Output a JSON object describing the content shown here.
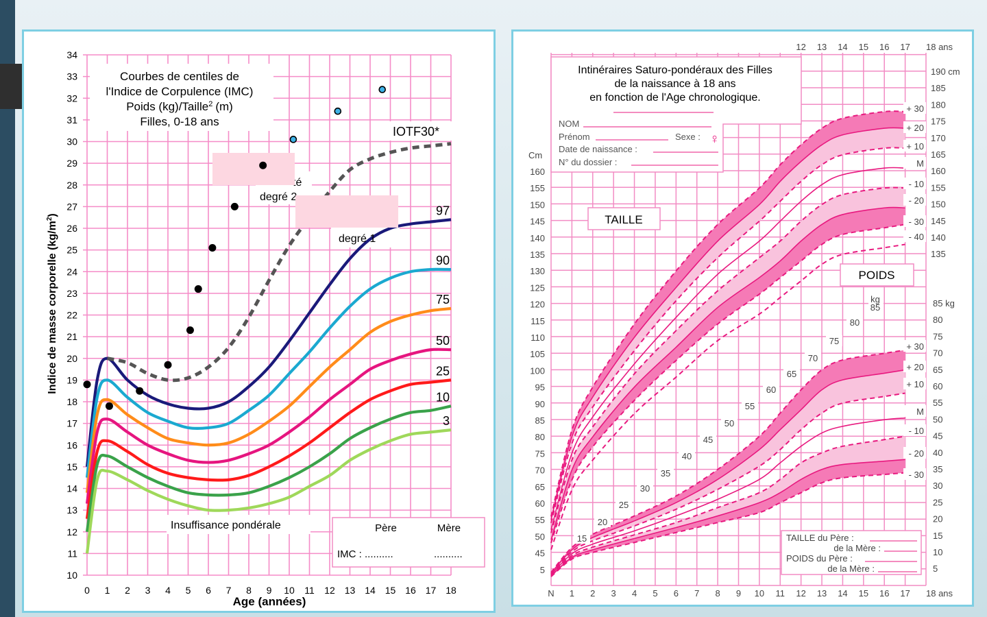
{
  "slide": {
    "background_accent": "#2c4d62",
    "panel_border": "#7ecfe3"
  },
  "chart_data": [
    {
      "type": "line",
      "title": "Courbes de centiles de l'Indice de Corpulence (IMC) Poids (kg)/Taille² (m) Filles, 0-18 ans",
      "title_lines": [
        "Courbes de centiles de",
        "l'Indice de Corpulence (IMC)",
        "Poids (kg)/Taille",
        "(m)",
        "Filles, 0-18 ans"
      ],
      "superscript": "2",
      "xlabel": "Age (années)",
      "ylabel": "Indice de masse corporelle (kg/m",
      "ylabel_sup": "2",
      "ylabel_end": ")",
      "xlim": [
        0,
        18
      ],
      "ylim": [
        10,
        34
      ],
      "xticks": [
        "0",
        "1",
        "2",
        "3",
        "4",
        "5",
        "6",
        "7",
        "8",
        "9",
        "10",
        "11",
        "12",
        "13",
        "14",
        "15",
        "16",
        "17",
        "18"
      ],
      "yticks": [
        "10",
        "11",
        "12",
        "13",
        "14",
        "15",
        "16",
        "17",
        "18",
        "19",
        "20",
        "21",
        "22",
        "23",
        "24",
        "25",
        "26",
        "27",
        "28",
        "29",
        "30",
        "31",
        "32",
        "33",
        "34"
      ],
      "grid": true,
      "x": [
        0,
        0.5,
        1,
        2,
        3,
        4,
        5,
        6,
        7,
        8,
        9,
        10,
        11,
        12,
        13,
        14,
        15,
        16,
        17,
        18
      ],
      "series": [
        {
          "name": "97",
          "color": "#1a1a7a",
          "values": [
            15.0,
            19.0,
            20.0,
            19.0,
            18.3,
            17.9,
            17.7,
            17.7,
            18.0,
            18.7,
            19.6,
            20.8,
            22.1,
            23.4,
            24.6,
            25.5,
            26.0,
            26.2,
            26.3,
            26.4
          ]
        },
        {
          "name": "90",
          "color": "#1ba9d0",
          "values": [
            14.5,
            18.2,
            19.0,
            18.2,
            17.5,
            17.1,
            16.8,
            16.8,
            17.0,
            17.6,
            18.3,
            19.3,
            20.3,
            21.4,
            22.4,
            23.2,
            23.7,
            24.0,
            24.1,
            24.1
          ]
        },
        {
          "name": "75",
          "color": "#ff8c1a",
          "values": [
            13.8,
            17.4,
            18.1,
            17.4,
            16.8,
            16.3,
            16.1,
            16.0,
            16.1,
            16.5,
            17.1,
            17.8,
            18.7,
            19.6,
            20.4,
            21.2,
            21.7,
            22.0,
            22.2,
            22.3
          ]
        },
        {
          "name": "50",
          "color": "#e6157f",
          "values": [
            13.3,
            16.6,
            17.2,
            16.6,
            16.0,
            15.6,
            15.3,
            15.2,
            15.3,
            15.6,
            16.0,
            16.6,
            17.3,
            18.1,
            18.8,
            19.5,
            19.9,
            20.2,
            20.4,
            20.4
          ]
        },
        {
          "name": "25",
          "color": "#ff1a1a",
          "values": [
            12.6,
            15.7,
            16.2,
            15.7,
            15.1,
            14.7,
            14.5,
            14.4,
            14.4,
            14.6,
            15.0,
            15.5,
            16.1,
            16.8,
            17.5,
            18.1,
            18.5,
            18.8,
            18.9,
            19.0
          ]
        },
        {
          "name": "10",
          "color": "#3aa24a",
          "values": [
            12.0,
            15.1,
            15.5,
            15.0,
            14.5,
            14.1,
            13.8,
            13.7,
            13.7,
            13.8,
            14.1,
            14.5,
            15.0,
            15.6,
            16.3,
            16.8,
            17.2,
            17.5,
            17.6,
            17.8
          ]
        },
        {
          "name": "3",
          "color": "#9fd85a",
          "values": [
            11.0,
            14.4,
            14.8,
            14.4,
            13.9,
            13.5,
            13.2,
            13.0,
            13.0,
            13.1,
            13.3,
            13.6,
            14.1,
            14.6,
            15.3,
            15.8,
            16.2,
            16.5,
            16.6,
            16.7
          ]
        },
        {
          "name": "IOTF30*",
          "color": "#555555",
          "dashed": true,
          "values": [
            null,
            null,
            20.0,
            19.8,
            19.3,
            19.0,
            19.1,
            19.6,
            20.5,
            21.9,
            23.6,
            25.2,
            26.5,
            27.7,
            28.7,
            29.2,
            29.5,
            29.7,
            29.8,
            29.9
          ]
        }
      ],
      "points_black": [
        {
          "x": 0.0,
          "y": 18.8
        },
        {
          "x": 1.1,
          "y": 17.8
        },
        {
          "x": 2.6,
          "y": 18.5
        },
        {
          "x": 4.0,
          "y": 19.7
        },
        {
          "x": 5.1,
          "y": 21.3
        },
        {
          "x": 5.5,
          "y": 23.2
        },
        {
          "x": 6.2,
          "y": 25.1
        },
        {
          "x": 7.3,
          "y": 27.0
        },
        {
          "x": 8.7,
          "y": 28.9
        }
      ],
      "points_blue": [
        {
          "x": 10.2,
          "y": 30.1,
          "color": "#3db2e6"
        },
        {
          "x": 12.4,
          "y": 31.4,
          "color": "#3db2e6"
        },
        {
          "x": 14.6,
          "y": 32.4,
          "color": "#3db2e6"
        }
      ],
      "annotations": {
        "iotf": "IOTF30*",
        "obesity_deg2_partial": "té",
        "degree2": "degré 2",
        "degree1": "degré 1",
        "underweight": "Insuffisance pondérale"
      },
      "parents_box": {
        "header_father": "Père",
        "header_mother": "Mère",
        "imc_label": "IMC : ..........",
        "mother_value": ".........."
      }
    },
    {
      "type": "line",
      "title_lines": [
        "Intinéraires Saturo-pondéraux des Filles",
        "de la naissance à 18 ans",
        "en fonction de l'Age chronologique."
      ],
      "form": {
        "nom": "NOM",
        "prenom": "Prénom",
        "sexe": "Sexe :",
        "sexe_symbol": "♀",
        "date_naissance": "Date de naissance :",
        "dossier": "N° du dossier :"
      },
      "height_label": "TAILLE",
      "weight_label": "POIDS",
      "xlabel": "ans",
      "x_ticks_bottom": [
        "N",
        "1",
        "2",
        "3",
        "4",
        "5",
        "6",
        "7",
        "8",
        "9",
        "10",
        "11",
        "12",
        "13",
        "14",
        "15",
        "16",
        "17",
        "18 ans"
      ],
      "x_ticks_top": [
        "12",
        "13",
        "14",
        "15",
        "16",
        "17",
        "18 ans"
      ],
      "y_left_unit": "Cm",
      "y_left_ticks": [
        "160",
        "155",
        "150",
        "145",
        "140",
        "135",
        "130",
        "125",
        "120",
        "115",
        "110",
        "105",
        "100",
        "95",
        "90",
        "85",
        "80",
        "75",
        "70",
        "65",
        "60",
        "55",
        "50",
        "45",
        "5"
      ],
      "y_right_height_ticks": [
        "190 cm",
        "185",
        "180",
        "175",
        "170",
        "165",
        "160",
        "155",
        "150",
        "145",
        "140",
        "135"
      ],
      "y_right_weight_ticks": [
        "85 kg",
        "80",
        "75",
        "70",
        "65",
        "60",
        "55",
        "50",
        "45",
        "40",
        "35",
        "30",
        "25",
        "20",
        "15",
        "10",
        "5"
      ],
      "inner_weight_labels": [
        "kg 85",
        "80",
        "75",
        "70",
        "65",
        "60",
        "55",
        "50",
        "45",
        "40",
        "35",
        "30",
        "25",
        "20",
        "15"
      ],
      "height_sd_labels": [
        "+ 30",
        "+ 20",
        "+ 10",
        "M",
        "- 10",
        "- 20",
        "- 30",
        "- 40"
      ],
      "weight_sd_labels": [
        "+ 30",
        "+ 20",
        "+ 10",
        "M",
        "- 10",
        "- 20",
        "- 30"
      ],
      "x": [
        0,
        1,
        2,
        4,
        6,
        8,
        10,
        11,
        12,
        13,
        14,
        16,
        17
      ],
      "height_series": [
        {
          "name": "+ 30",
          "dashed": true,
          "values": [
            56,
            82,
            95,
            114,
            130,
            144,
            155,
            162,
            168,
            173,
            176,
            178,
            178
          ]
        },
        {
          "name": "+ 20",
          "values": [
            55,
            80,
            92,
            110,
            125,
            139,
            150,
            157,
            163,
            168,
            171,
            173,
            173
          ]
        },
        {
          "name": "+ 10",
          "dashed": true,
          "values": [
            54,
            78,
            89,
            106,
            121,
            134,
            145,
            151,
            157,
            162,
            165,
            167,
            167
          ]
        },
        {
          "name": "M",
          "values": [
            52,
            75,
            86,
            102,
            116,
            129,
            139,
            145,
            151,
            156,
            159,
            161,
            161
          ]
        },
        {
          "name": "- 10",
          "dashed": true,
          "values": [
            51,
            73,
            83,
            99,
            112,
            124,
            134,
            139,
            145,
            150,
            153,
            155,
            155
          ]
        },
        {
          "name": "- 20",
          "values": [
            49,
            70,
            80,
            95,
            107,
            119,
            128,
            133,
            139,
            144,
            147,
            149,
            149
          ]
        },
        {
          "name": "- 30",
          "dashed": true,
          "values": [
            48,
            67,
            77,
            91,
            103,
            114,
            123,
            128,
            133,
            138,
            141,
            143,
            144
          ]
        },
        {
          "name": "- 40",
          "dashed": true,
          "values": [
            46,
            64,
            73,
            87,
            98,
            109,
            117,
            122,
            127,
            132,
            135,
            137,
            138
          ]
        }
      ],
      "weight_series": [
        {
          "name": "+ 30",
          "dashed": true,
          "values": [
            4.0,
            11.5,
            15.5,
            21,
            27,
            35,
            45,
            52,
            59,
            65,
            68,
            70,
            71
          ]
        },
        {
          "name": "+ 20",
          "values": [
            3.7,
            10.8,
            14.5,
            19.5,
            25,
            32,
            41,
            47,
            53,
            59,
            62,
            64,
            65
          ]
        },
        {
          "name": "+ 10",
          "dashed": true,
          "values": [
            3.5,
            10.2,
            13.5,
            18,
            23,
            29,
            36,
            41,
            47,
            52,
            55,
            57,
            58
          ]
        },
        {
          "name": "M",
          "values": [
            3.3,
            9.6,
            12.5,
            16.5,
            21,
            26,
            32,
            37,
            42,
            46,
            48,
            50,
            50.5
          ]
        },
        {
          "name": "- 10",
          "dashed": true,
          "values": [
            3.1,
            9.0,
            11.6,
            15.3,
            19,
            23.5,
            28,
            32,
            37,
            40,
            42,
            44,
            45
          ]
        },
        {
          "name": "- 20",
          "values": [
            2.9,
            8.5,
            10.8,
            14.2,
            17.5,
            21,
            25,
            28,
            32,
            35,
            36.5,
            37.5,
            38
          ]
        },
        {
          "name": "- 30",
          "dashed": true,
          "values": [
            2.7,
            8.0,
            10.0,
            13.0,
            16,
            19,
            22,
            25,
            28,
            31,
            32.5,
            33.5,
            34
          ]
        }
      ],
      "parents_box": {
        "taille_pere": "TAILLE  du Père :",
        "taille_mere": "de la Mère :",
        "poids_pere": "POIDS du Père :",
        "poids_mere": "de la Mère :"
      },
      "colors": {
        "grid": "#f28cc4",
        "line": "#e8197f",
        "band_dark": "#f57ab6",
        "band_light": "#f9c3dd"
      }
    }
  ]
}
